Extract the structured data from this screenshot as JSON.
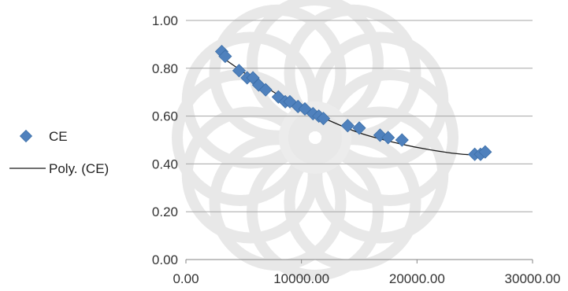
{
  "chart_data": {
    "type": "scatter",
    "title": "",
    "xlabel": "",
    "ylabel": "",
    "xlim": [
      0,
      30000
    ],
    "ylim": [
      0,
      1
    ],
    "x_ticks": [
      "0.00",
      "10000.00",
      "20000.00",
      "30000.00"
    ],
    "y_ticks": [
      "0.00",
      "0.20",
      "0.40",
      "0.60",
      "0.80",
      "1.00"
    ],
    "grid": "horizontal",
    "legend_position": "left",
    "series": [
      {
        "name": "CE",
        "marker": "diamond",
        "color": "#4f81bd",
        "x": [
          3100,
          3400,
          4600,
          5300,
          5800,
          6300,
          6900,
          8000,
          8600,
          9000,
          9700,
          10300,
          11000,
          11500,
          11900,
          14000,
          15000,
          16800,
          17500,
          18700,
          25000,
          25500,
          25900
        ],
        "y": [
          0.87,
          0.85,
          0.79,
          0.76,
          0.76,
          0.73,
          0.71,
          0.68,
          0.66,
          0.66,
          0.64,
          0.63,
          0.61,
          0.6,
          0.59,
          0.56,
          0.55,
          0.52,
          0.51,
          0.5,
          0.44,
          0.44,
          0.45
        ]
      },
      {
        "name": "Poly. (CE)",
        "kind": "trendline",
        "color": "#1a1a1a",
        "x": [
          3000,
          6000,
          9000,
          12000,
          15000,
          18000,
          21000,
          24000,
          26000
        ],
        "y": [
          0.85,
          0.75,
          0.66,
          0.59,
          0.53,
          0.49,
          0.46,
          0.44,
          0.44
        ]
      }
    ]
  }
}
